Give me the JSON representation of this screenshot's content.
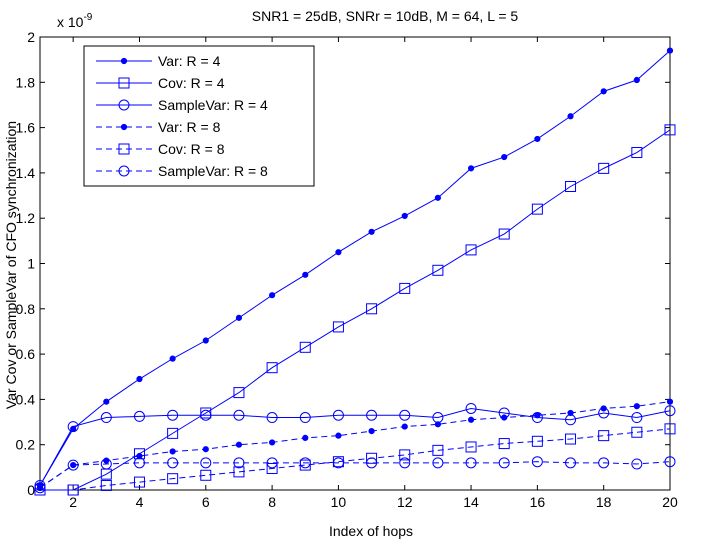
{
  "chart_data": {
    "type": "line",
    "title": "SNR1 = 25dB, SNRr = 10dB, M = 64, L = 5",
    "xlabel": "Index of hops",
    "ylabel": "Var Cov or SampleVar of CFO synchronization",
    "y_exponent_label": "x 10",
    "y_exponent_power": "-9",
    "xlim": [
      1,
      20
    ],
    "ylim": [
      0,
      2
    ],
    "xticks": [
      2,
      4,
      6,
      8,
      10,
      12,
      14,
      16,
      18,
      20
    ],
    "yticks": [
      0,
      0.2,
      0.4,
      0.6,
      0.8,
      1,
      1.2,
      1.4,
      1.6,
      1.8,
      2
    ],
    "grid": false,
    "legend_position": "top-left",
    "x": [
      1,
      2,
      3,
      4,
      5,
      6,
      7,
      8,
      9,
      10,
      11,
      12,
      13,
      14,
      15,
      16,
      17,
      18,
      19,
      20
    ],
    "series": [
      {
        "name": "Var: R = 4",
        "color": "#0000ff",
        "line": "solid",
        "marker": "dot",
        "values": [
          0.02,
          0.27,
          0.39,
          0.49,
          0.58,
          0.66,
          0.76,
          0.86,
          0.95,
          1.05,
          1.14,
          1.21,
          1.29,
          1.42,
          1.47,
          1.55,
          1.65,
          1.76,
          1.81,
          1.94
        ]
      },
      {
        "name": "Cov: R = 4",
        "color": "#0000ff",
        "line": "solid",
        "marker": "square",
        "values": [
          0.0,
          0.0,
          0.07,
          0.16,
          0.25,
          0.34,
          0.43,
          0.54,
          0.63,
          0.72,
          0.8,
          0.89,
          0.97,
          1.06,
          1.13,
          1.24,
          1.34,
          1.42,
          1.49,
          1.59
        ]
      },
      {
        "name": "SampleVar: R = 4",
        "color": "#0000ff",
        "line": "solid",
        "marker": "circle",
        "values": [
          0.02,
          0.28,
          0.32,
          0.325,
          0.33,
          0.33,
          0.33,
          0.32,
          0.32,
          0.33,
          0.33,
          0.33,
          0.32,
          0.36,
          0.34,
          0.32,
          0.31,
          0.34,
          0.32,
          0.35
        ]
      },
      {
        "name": "Var: R = 8",
        "color": "#0000ff",
        "line": "dashed",
        "marker": "dot",
        "values": [
          0.01,
          0.11,
          0.13,
          0.15,
          0.17,
          0.18,
          0.2,
          0.21,
          0.23,
          0.24,
          0.26,
          0.28,
          0.29,
          0.31,
          0.32,
          0.33,
          0.34,
          0.36,
          0.37,
          0.39
        ]
      },
      {
        "name": "Cov: R = 8",
        "color": "#0000ff",
        "line": "dashed",
        "marker": "square",
        "values": [
          0.0,
          0.0,
          0.02,
          0.035,
          0.05,
          0.065,
          0.08,
          0.095,
          0.11,
          0.125,
          0.14,
          0.155,
          0.175,
          0.19,
          0.205,
          0.215,
          0.225,
          0.24,
          0.255,
          0.27
        ]
      },
      {
        "name": "SampleVar: R = 8",
        "color": "#0000ff",
        "line": "dashed",
        "marker": "circle",
        "values": [
          0.01,
          0.11,
          0.115,
          0.12,
          0.12,
          0.12,
          0.12,
          0.12,
          0.12,
          0.12,
          0.12,
          0.12,
          0.12,
          0.12,
          0.12,
          0.125,
          0.12,
          0.12,
          0.115,
          0.125
        ]
      }
    ]
  }
}
